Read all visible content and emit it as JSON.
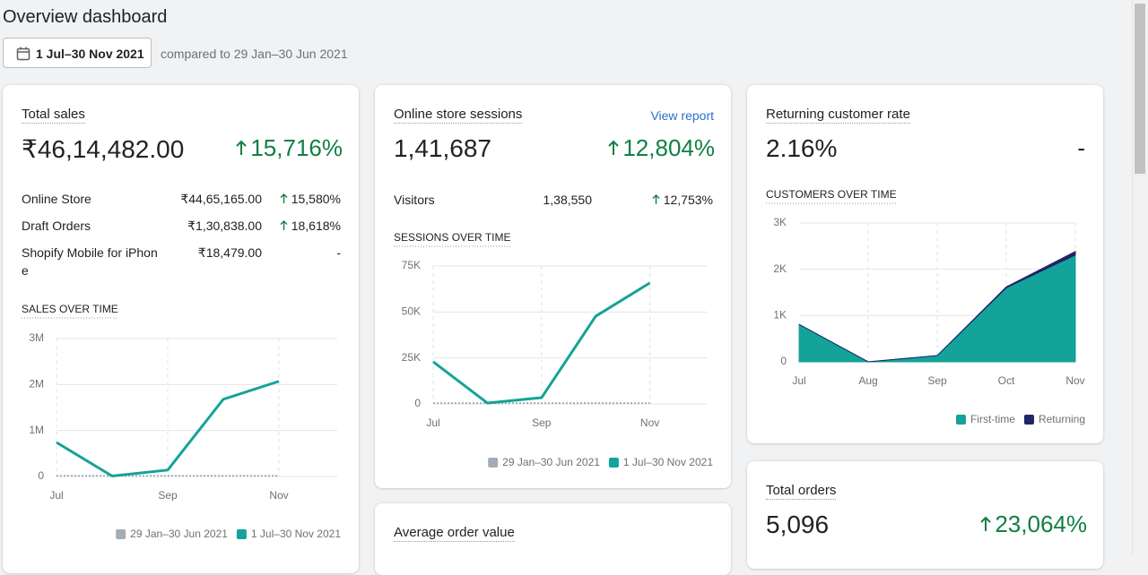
{
  "header": {
    "title": "Overview dashboard",
    "date_range": "1 Jul–30 Nov 2021",
    "comparison": "compared to 29 Jan–30 Jun 2021"
  },
  "cards": {
    "total_sales": {
      "title": "Total sales",
      "value": "₹46,14,482.00",
      "change": "15,716%",
      "rows": [
        [
          "Online Store",
          "₹44,65,165.00",
          "15,580%"
        ],
        [
          "Draft Orders",
          "₹1,30,838.00",
          "18,618%"
        ],
        [
          "Shopify Mobile for iPhone",
          "₹18,479.00",
          "-"
        ]
      ]
    },
    "sessions": {
      "title": "Online store sessions",
      "link": "View report",
      "value": "1,41,687",
      "change": "12,804%",
      "rows": [
        [
          "Visitors",
          "1,38,550",
          "12,753%"
        ]
      ]
    },
    "returning": {
      "title": "Returning customer rate",
      "value": "2.16%",
      "change": "-"
    },
    "total_orders": {
      "title": "Total orders",
      "value": "5,096",
      "change": "23,064%"
    },
    "average_order_value": {
      "title": "Average order value"
    }
  },
  "chart_data": [
    {
      "type": "line",
      "title": "SALES OVER TIME",
      "categories": [
        "Jul",
        null,
        "Sep",
        null,
        "Nov"
      ],
      "ylim": [
        0,
        3000000
      ],
      "yticks": [
        0,
        {
          "value": 1000000,
          "label": "1M"
        },
        {
          "value": 2000000,
          "label": "2M"
        },
        {
          "value": 3000000,
          "label": "3M"
        }
      ],
      "grid": true,
      "series": [
        {
          "name": "29 Jan–30 Jun 2021",
          "color": "#a4adb6",
          "style": "dashed",
          "values": [
            15000,
            15000,
            15000,
            15000,
            15000
          ]
        },
        {
          "name": "1 Jul–30 Nov 2021",
          "color": "#13a39a",
          "values": [
            740000,
            10000,
            140000,
            1680000,
            2070000
          ]
        }
      ]
    },
    {
      "type": "line",
      "title": "SESSIONS OVER TIME",
      "categories": [
        "Jul",
        null,
        "Sep",
        null,
        "Nov"
      ],
      "ylim": [
        0,
        75000
      ],
      "yticks": [
        0,
        {
          "value": 25000,
          "label": "25K"
        },
        {
          "value": 50000,
          "label": "50K"
        },
        {
          "value": 75000,
          "label": "75K"
        }
      ],
      "grid": true,
      "series": [
        {
          "name": "29 Jan–30 Jun 2021",
          "color": "#a4adb6",
          "style": "dashed",
          "values": [
            400,
            400,
            400,
            400,
            400
          ]
        },
        {
          "name": "1 Jul–30 Nov 2021",
          "color": "#13a39a",
          "values": [
            22900,
            500,
            3400,
            47700,
            65800
          ]
        }
      ]
    },
    {
      "type": "area",
      "title": "CUSTOMERS OVER TIME",
      "categories": [
        "Jul",
        "Aug",
        "Sep",
        "Oct",
        "Nov"
      ],
      "ylim": [
        0,
        3000
      ],
      "yticks": [
        0,
        {
          "value": 1000,
          "label": "1K"
        },
        {
          "value": 2000,
          "label": "2K"
        },
        {
          "value": 3000,
          "label": "3K"
        }
      ],
      "grid": true,
      "stacked": true,
      "series": [
        {
          "name": "First-time",
          "color": "#13a39a",
          "values": [
            810,
            0,
            135,
            1600,
            2310
          ]
        },
        {
          "name": "Returning",
          "color": "#1f2565",
          "values": [
            0,
            0,
            0,
            20,
            75
          ]
        }
      ]
    }
  ]
}
